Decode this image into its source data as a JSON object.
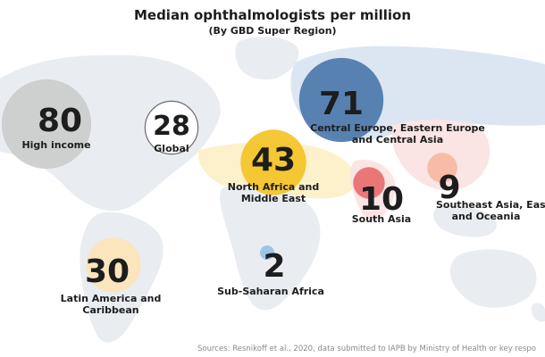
{
  "title": "Median ophthalmologists per million",
  "subtitle": "(By GBD Super Region)",
  "source": "Sources: Resnikoff et al., 2020, data submitted to IAPB by Ministry of Health or key respo",
  "chart_data": {
    "type": "bubble",
    "title": "Median ophthalmologists per million",
    "subtitle": "(By GBD Super Region)",
    "categories": [
      "High income",
      "Global",
      "Central Europe, Eastern Europe and Central Asia",
      "North Africa and Middle East",
      "South Asia",
      "Southeast Asia, East Asia and Oceania",
      "Latin America and Caribbean",
      "Sub-Saharan Africa"
    ],
    "values": [
      80,
      28,
      71,
      43,
      10,
      9,
      30,
      2
    ],
    "colors": [
      "#c9c9c9",
      "#ffffff",
      "#3f6ea6",
      "#f3c326",
      "#e86a6a",
      "#f6b49c",
      "#fde3b4",
      "#9fc5e6"
    ],
    "legend": "none",
    "grid": false
  }
}
